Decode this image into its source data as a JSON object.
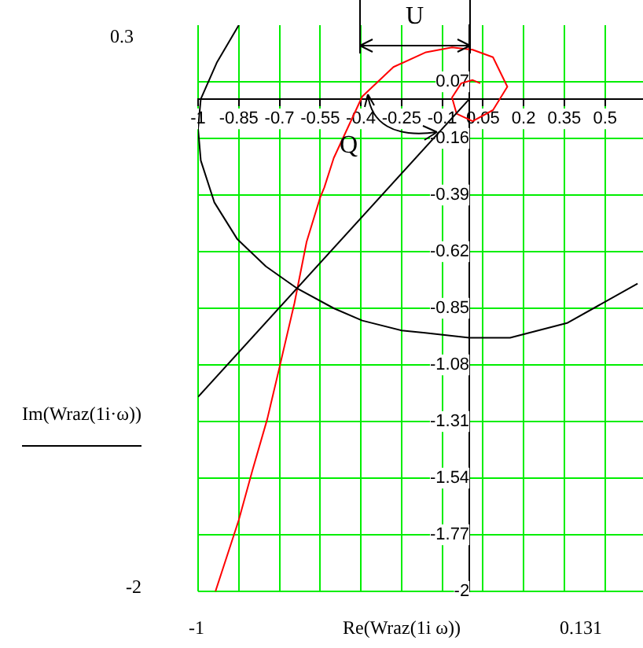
{
  "chart_data": {
    "type": "line",
    "xlabel": "Re(Wraz(1i ω))",
    "ylabel": "Im(Wraz(1i·ω))",
    "xlim": [
      -1,
      0.64
    ],
    "ylim": [
      -2,
      0.3
    ],
    "xticks": [
      -1,
      -0.85,
      -0.7,
      -0.55,
      -0.4,
      -0.25,
      -0.1,
      0.05,
      0.2,
      0.35,
      0.5
    ],
    "yticks": [
      0.07,
      -0.16,
      -0.39,
      -0.62,
      -0.85,
      -1.08,
      -1.31,
      -1.54,
      -1.77,
      -2
    ],
    "grid": true,
    "legend": false,
    "marker": "none",
    "series": [
      {
        "color": "#000000",
        "x": [
          -0.85,
          -0.93,
          -0.99,
          -1.0,
          -0.99,
          -0.94,
          -0.855,
          -0.75,
          -0.634,
          -0.5,
          -0.395,
          -0.25,
          -0.163,
          0,
          0.15,
          0.36,
          0.62
        ],
        "values": [
          0.3,
          0.15,
          0.0,
          -0.12,
          -0.25,
          -0.42,
          -0.57,
          -0.68,
          -0.77,
          -0.85,
          -0.9,
          -0.94,
          -0.95,
          -0.97,
          -0.97,
          -0.91,
          -0.75
        ]
      },
      {
        "color": "#000000",
        "x": [
          -1,
          0
        ],
        "values": [
          -1.21,
          0
        ]
      },
      {
        "color": "#ff0000",
        "x": [
          -0.936,
          -0.85,
          -0.8,
          -0.745,
          -0.7,
          -0.645,
          -0.6,
          -0.55,
          -0.535,
          -0.5,
          -0.395,
          -0.28,
          -0.16,
          -0.064,
          0.012,
          0.087,
          0.14,
          0.087,
          0.012,
          -0.047,
          -0.064,
          -0.03,
          0.012,
          0.04
        ],
        "values": [
          -2,
          -1.71,
          -1.51,
          -1.3,
          -1.09,
          -0.83,
          -0.58,
          -0.4,
          -0.36,
          -0.24,
          0.01,
          0.13,
          0.19,
          0.21,
          0.2,
          0.17,
          0.05,
          -0.045,
          -0.09,
          -0.06,
          0.006,
          0.064,
          0.077,
          0.064
        ]
      }
    ],
    "annotations": [
      "U",
      "Q",
      "0.3",
      "-2",
      "-1",
      "0.131"
    ]
  }
}
